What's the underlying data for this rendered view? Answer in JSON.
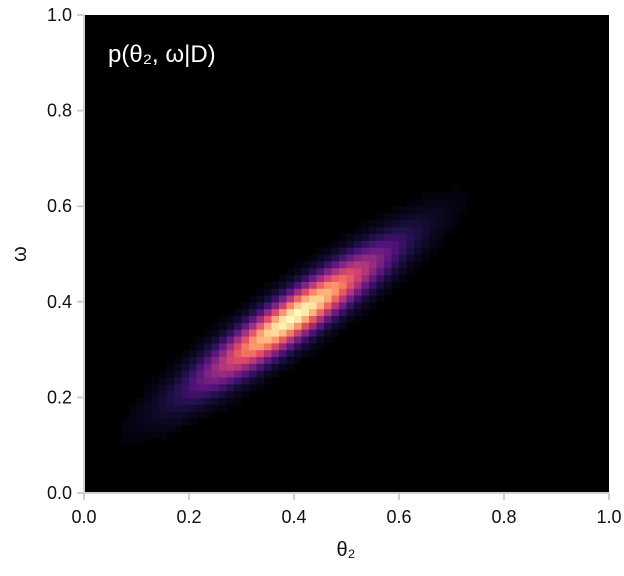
{
  "chart_data": {
    "type": "heatmap",
    "title": "p(θ₂, ω|D)",
    "xlabel": "θ₂",
    "ylabel": "ω",
    "xlim": [
      0.0,
      1.0
    ],
    "ylim": [
      0.0,
      1.0
    ],
    "xticks": [
      "0.0",
      "0.2",
      "0.4",
      "0.6",
      "0.8",
      "1.0"
    ],
    "yticks": [
      "0.0",
      "0.2",
      "0.4",
      "0.6",
      "0.8",
      "1.0"
    ],
    "xtick_values": [
      0.0,
      0.2,
      0.4,
      0.6,
      0.8,
      1.0
    ],
    "ytick_values": [
      0.0,
      0.2,
      0.4,
      0.6,
      0.8,
      1.0
    ],
    "grid": false,
    "colormap": "magma",
    "background_color": "#000000",
    "distribution": {
      "kind": "bivariate-gaussian",
      "mean": [
        0.4,
        0.37
      ],
      "std": [
        0.1,
        0.08
      ],
      "correlation": 0.92
    }
  }
}
